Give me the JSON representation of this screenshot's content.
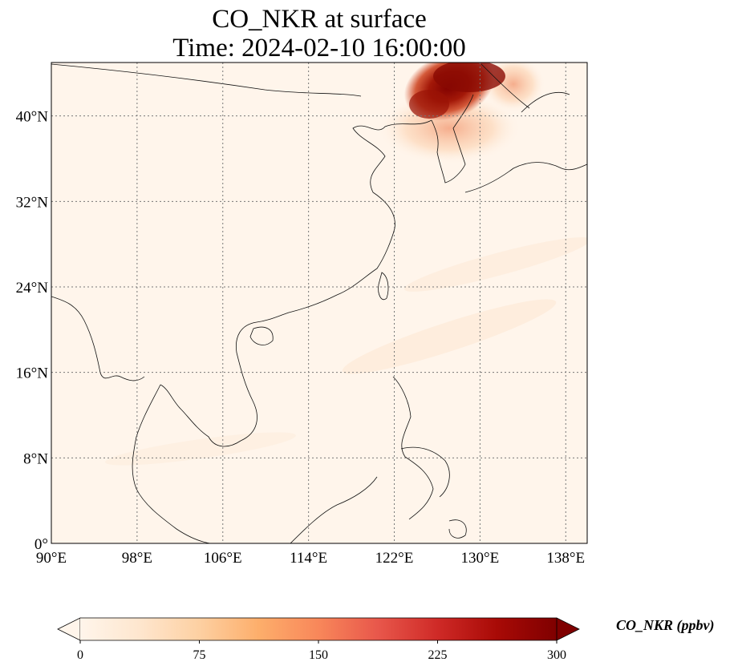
{
  "title": {
    "line1": "CO_NKR at surface",
    "line2": "Time: 2024-02-10 16:00:00"
  },
  "map": {
    "lon_range": [
      90,
      140
    ],
    "lat_range": [
      0,
      45
    ],
    "lon_ticks": [
      {
        "value": 90,
        "label": "90°E"
      },
      {
        "value": 98,
        "label": "98°E"
      },
      {
        "value": 106,
        "label": "106°E"
      },
      {
        "value": 114,
        "label": "114°E"
      },
      {
        "value": 122,
        "label": "122°E"
      },
      {
        "value": 130,
        "label": "130°E"
      },
      {
        "value": 138,
        "label": "138°E"
      }
    ],
    "lat_ticks": [
      {
        "value": 0,
        "label": "0°"
      },
      {
        "value": 8,
        "label": "8°N"
      },
      {
        "value": 16,
        "label": "16°N"
      },
      {
        "value": 24,
        "label": "24°N"
      },
      {
        "value": 32,
        "label": "32°N"
      },
      {
        "value": 40,
        "label": "40°N"
      }
    ],
    "gridlines": true,
    "background_color": "#fff5eb",
    "plume_region": "Northeast China / North Korea, approx 124-133°E, 38-45°N"
  },
  "colorbar": {
    "label": "CO_NKR (ppbv)",
    "min": 0,
    "max": 300,
    "ticks": [
      {
        "value": 0,
        "label": "0"
      },
      {
        "value": 75,
        "label": "75"
      },
      {
        "value": 150,
        "label": "150"
      },
      {
        "value": 225,
        "label": "225"
      },
      {
        "value": 300,
        "label": "300"
      }
    ],
    "colormap": "OrRd",
    "extend": "both",
    "colors": [
      "#fff5eb",
      "#fee6ce",
      "#fdd0a2",
      "#fdae6b",
      "#fd8d3c",
      "#f16913",
      "#d94801",
      "#a63603",
      "#7f2704"
    ]
  }
}
